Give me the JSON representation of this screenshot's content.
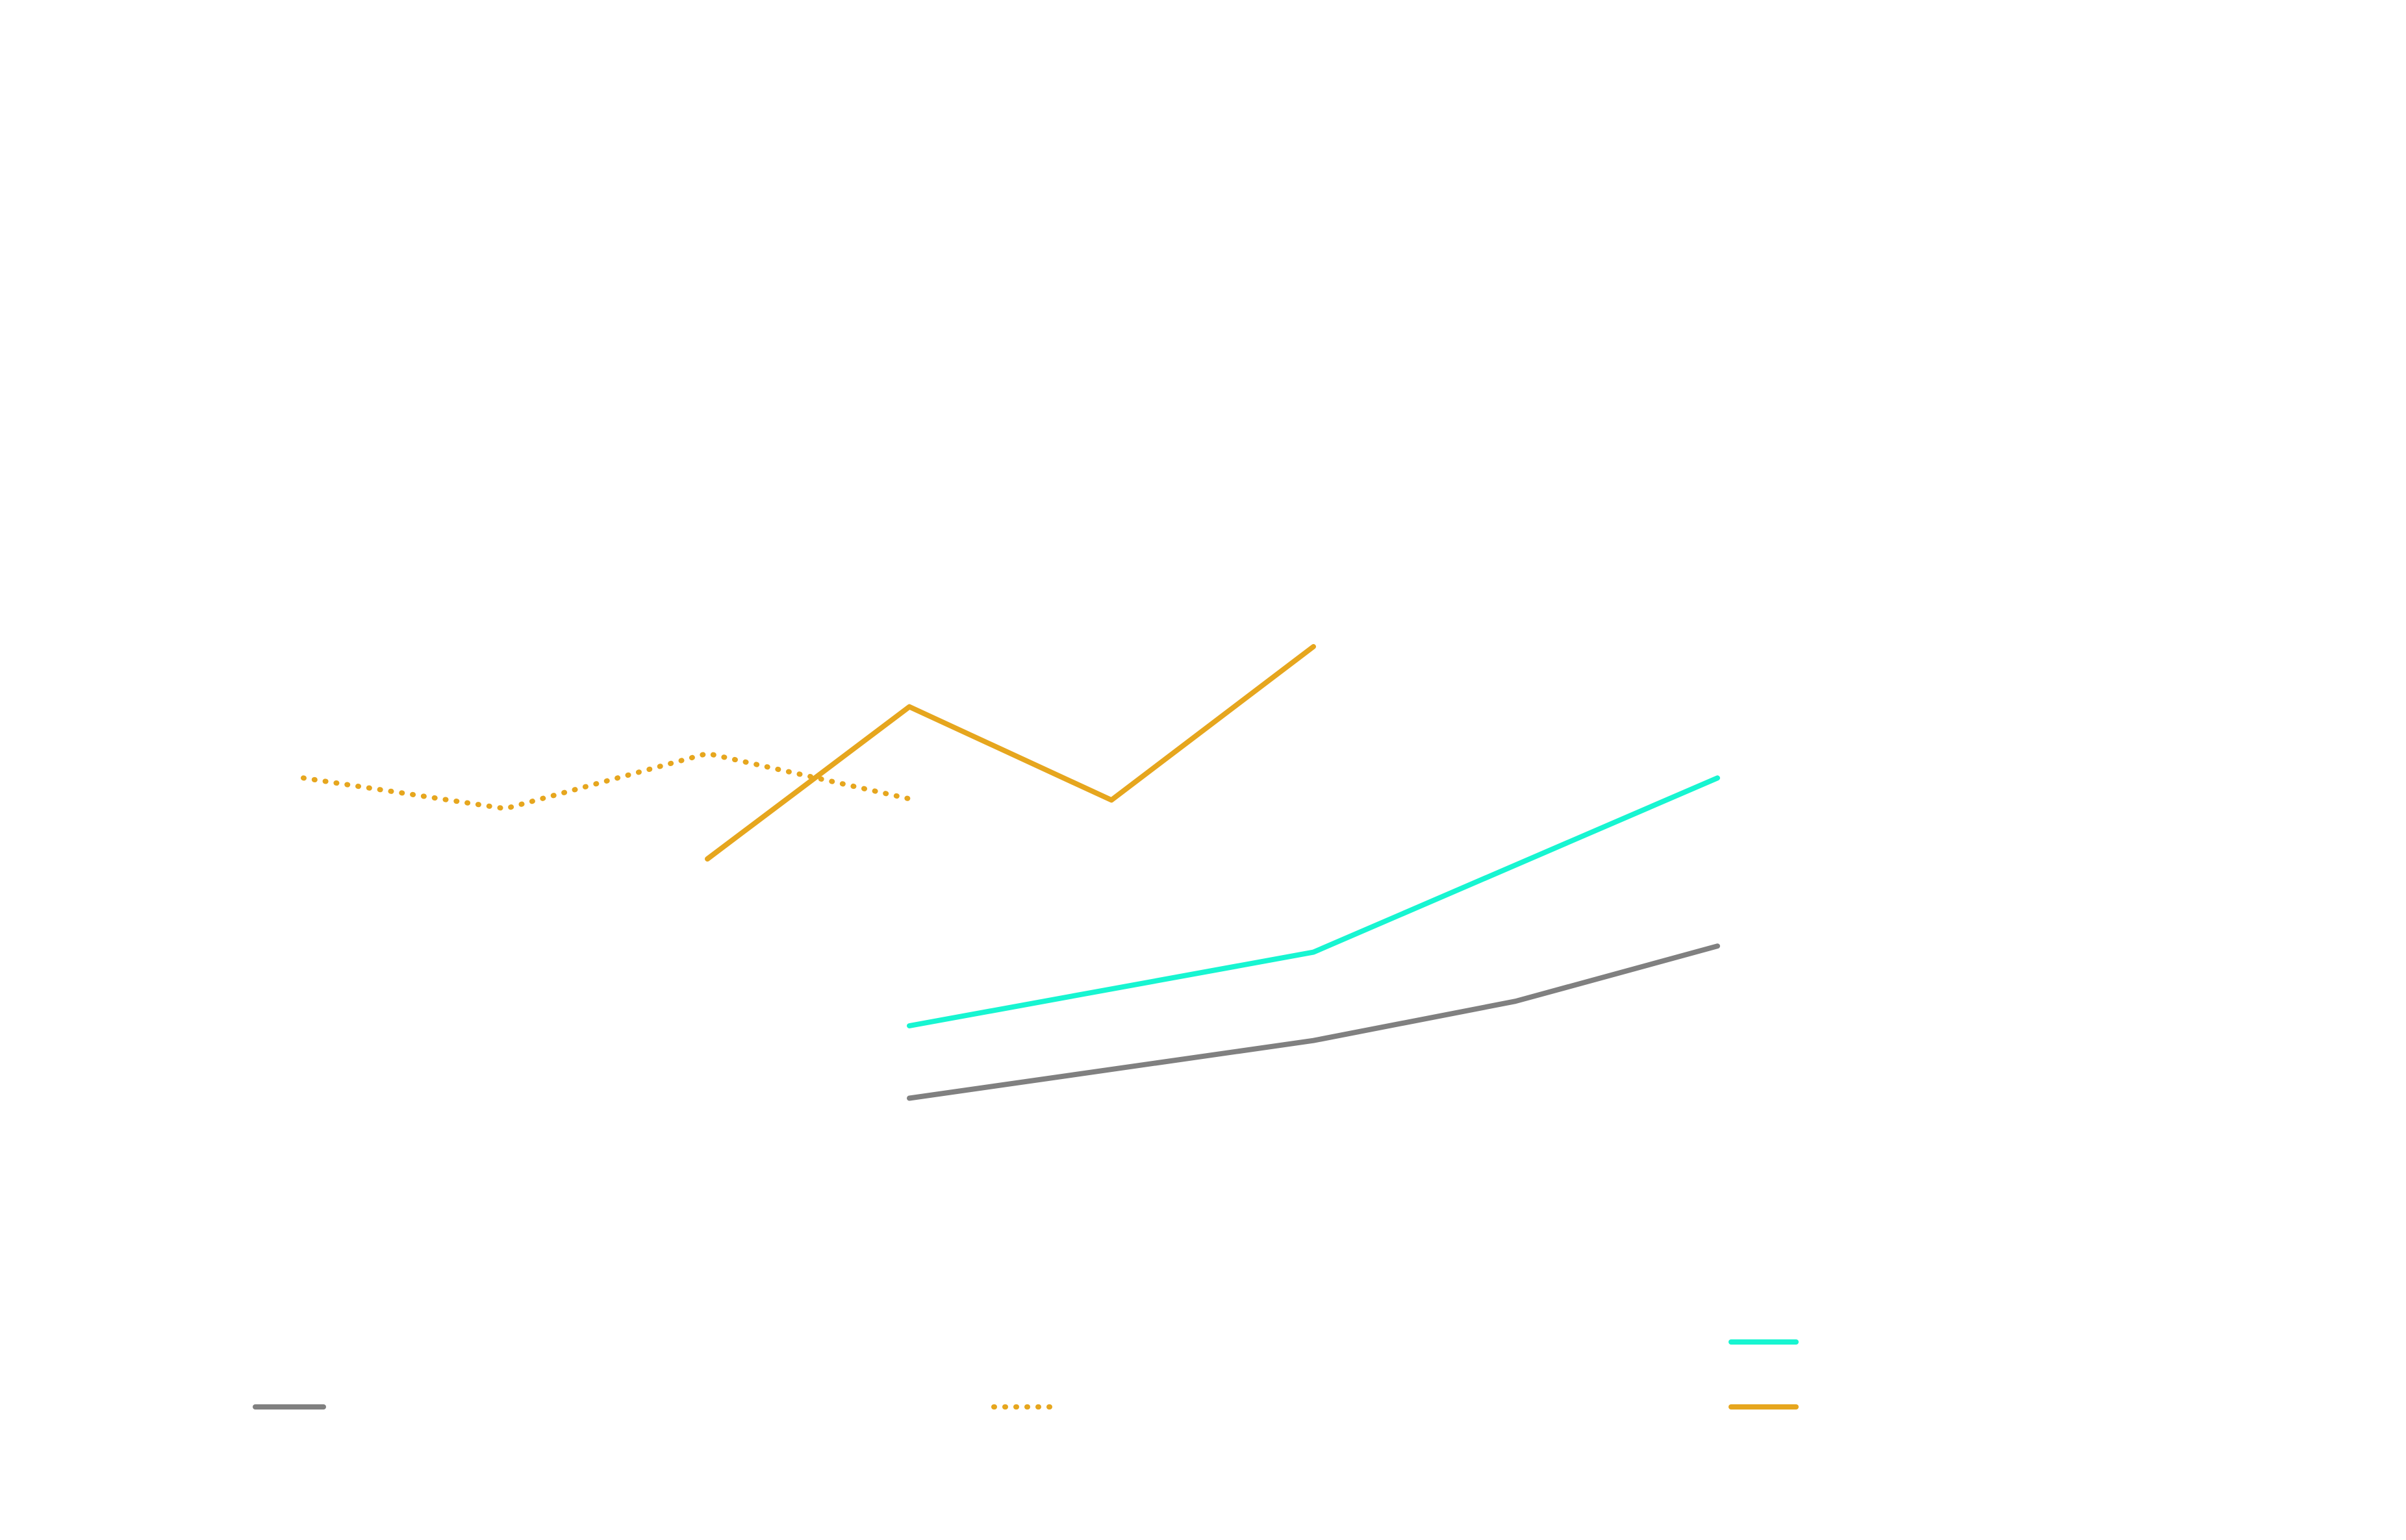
{
  "chart_data": {
    "type": "line",
    "title": "",
    "xlabel": "",
    "ylabel": "",
    "grid": false,
    "legend_placement": "bottom",
    "x": [
      0,
      1,
      2,
      3,
      4,
      5,
      6,
      7
    ],
    "ylim": [
      0,
      10
    ],
    "series": [
      {
        "key": "gray",
        "color": "#808080",
        "style": "solid",
        "points": [
          [
            3,
            1.05
          ],
          [
            5,
            1.52
          ],
          [
            6,
            1.84
          ],
          [
            7,
            2.29
          ]
        ]
      },
      {
        "key": "cyan",
        "color": "#17f5d1",
        "style": "solid",
        "points": [
          [
            3,
            1.64
          ],
          [
            5,
            2.24
          ],
          [
            7,
            3.66
          ]
        ]
      },
      {
        "key": "orange-dotted",
        "color": "#e6a61e",
        "style": "dotted",
        "points": [
          [
            0,
            3.66
          ],
          [
            1,
            3.41
          ],
          [
            2,
            3.86
          ],
          [
            3,
            3.49
          ]
        ]
      },
      {
        "key": "orange-solid",
        "color": "#e6a61e",
        "style": "solid",
        "points": [
          [
            2,
            3.0
          ],
          [
            3,
            4.24
          ],
          [
            4,
            3.48
          ],
          [
            5,
            4.73
          ]
        ]
      }
    ],
    "legend": [
      {
        "series": "cyan"
      },
      {
        "series": "gray"
      },
      {
        "series": "orange-dotted"
      },
      {
        "series": "orange-solid"
      }
    ]
  }
}
